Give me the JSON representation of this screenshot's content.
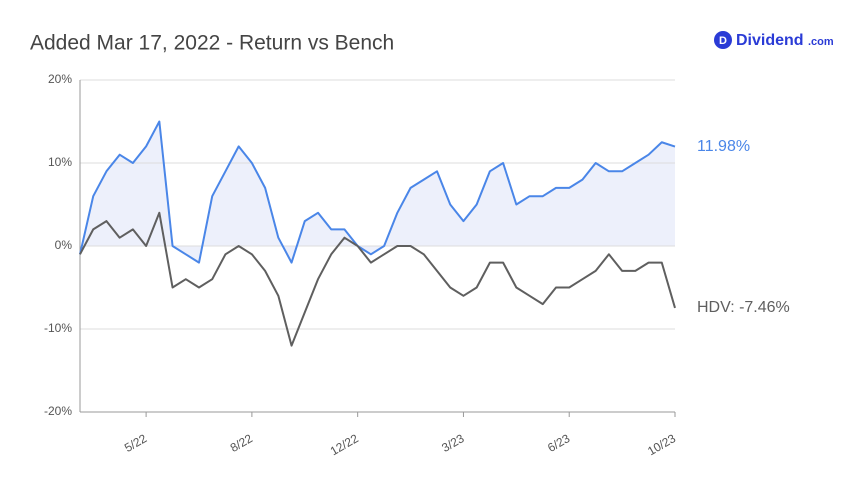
{
  "logo": {
    "icon": "D",
    "name": "Dividend",
    "suffix": ".com"
  },
  "chart_data": {
    "type": "line",
    "title": "Added Mar 17, 2022 - Return vs Bench",
    "categories": [
      null,
      null,
      null,
      null,
      null,
      "5/22",
      null,
      null,
      null,
      null,
      null,
      null,
      null,
      "8/22",
      null,
      null,
      null,
      null,
      null,
      null,
      null,
      "12/22",
      null,
      null,
      null,
      null,
      null,
      null,
      null,
      "3/23",
      null,
      null,
      null,
      null,
      null,
      null,
      null,
      "6/23",
      null,
      null,
      null,
      null,
      null,
      null,
      null,
      "10/23"
    ],
    "series": [
      {
        "color": "#4a86e8",
        "fill": "#edf0fb",
        "values": [
          -1,
          6,
          9,
          11,
          10,
          12,
          15,
          0,
          -1,
          -2,
          6,
          9,
          12,
          10,
          7,
          1,
          -2,
          3,
          4,
          2,
          2,
          0,
          -1,
          0,
          4,
          7,
          8,
          9,
          5,
          3,
          5,
          9,
          10,
          5,
          6,
          6,
          7,
          7,
          8,
          10,
          9,
          9,
          10,
          11,
          12.5,
          11.98
        ],
        "value_labels": [
          null,
          null,
          null,
          null,
          null,
          null,
          null,
          null,
          null,
          null,
          null,
          null,
          null,
          null,
          null,
          null,
          null,
          null,
          null,
          null,
          null,
          null,
          null,
          null,
          null,
          null,
          null,
          null,
          null,
          null,
          null,
          null,
          null,
          null,
          null,
          null,
          null,
          null,
          null,
          null,
          null,
          null,
          null,
          null,
          null,
          "11.98%"
        ]
      },
      {
        "name": "HDV",
        "color": "#5f5f5f",
        "values": [
          -1,
          2,
          3,
          1,
          2,
          0,
          4,
          -5,
          -4,
          -5,
          -4,
          -1,
          0,
          -1,
          -3,
          -6,
          -12,
          -8,
          -4,
          -1,
          1,
          0,
          -2,
          -1,
          0,
          0,
          -1,
          -3,
          -5,
          -6,
          -5,
          -2,
          -2,
          -5,
          -6,
          -7,
          -5,
          -5,
          -4,
          -3,
          -1,
          -3,
          -3,
          -2,
          -2,
          -7.46
        ],
        "value_labels": [
          null,
          null,
          null,
          null,
          null,
          null,
          null,
          null,
          null,
          null,
          null,
          null,
          null,
          null,
          null,
          null,
          null,
          null,
          null,
          null,
          null,
          null,
          null,
          null,
          null,
          null,
          null,
          null,
          null,
          null,
          null,
          null,
          null,
          null,
          null,
          null,
          null,
          null,
          null,
          null,
          null,
          null,
          null,
          null,
          null,
          "HDV: -7.46%"
        ]
      }
    ],
    "ylim": [
      -20,
      20
    ],
    "yticks": [
      {
        "value": -20,
        "label": "-20%"
      },
      {
        "value": -10,
        "label": "-10%"
      },
      {
        "value": 0,
        "label": "0%"
      },
      {
        "value": 10,
        "label": "10%"
      },
      {
        "value": 20,
        "label": "20%"
      }
    ],
    "grid": true
  }
}
